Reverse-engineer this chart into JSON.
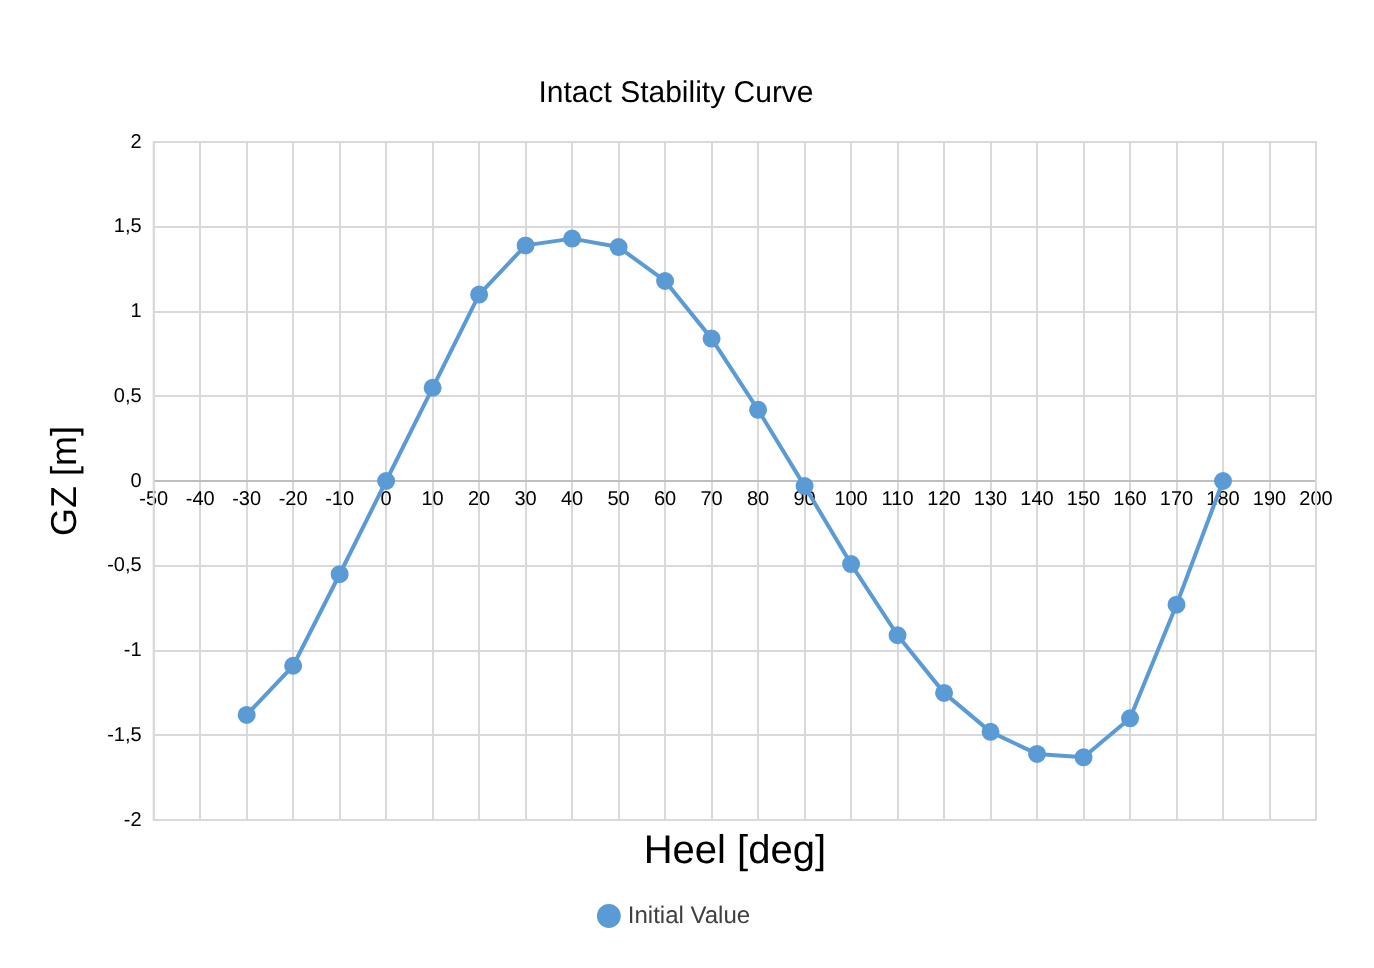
{
  "chart_data": {
    "type": "line",
    "title": "Intact Stability Curve",
    "xlabel": "Heel [deg]",
    "ylabel": "GZ [m]",
    "x": [
      -30,
      -20,
      -10,
      0,
      10,
      20,
      30,
      40,
      50,
      60,
      70,
      80,
      90,
      100,
      110,
      120,
      130,
      140,
      150,
      160,
      170,
      180
    ],
    "series": [
      {
        "name": "Initial Value",
        "color": "#5b9bd5",
        "values": [
          -1.38,
          -1.09,
          -0.55,
          0,
          0.55,
          1.1,
          1.39,
          1.43,
          1.38,
          1.18,
          0.84,
          0.42,
          -0.03,
          -0.49,
          -0.91,
          -1.25,
          -1.48,
          -1.61,
          -1.63,
          -1.4,
          -0.73,
          0
        ]
      }
    ],
    "xlim": [
      -50,
      200
    ],
    "xticks": [
      -50,
      -40,
      -30,
      -20,
      -10,
      0,
      10,
      20,
      30,
      40,
      50,
      60,
      70,
      80,
      90,
      100,
      110,
      120,
      130,
      140,
      150,
      160,
      170,
      180,
      190,
      200
    ],
    "ylim": [
      -2,
      2
    ],
    "yticks": [
      -2,
      {
        "value": -1.5,
        "label": "-1,5"
      },
      -1,
      {
        "value": -0.5,
        "label": "-0,5"
      },
      0,
      {
        "value": 0.5,
        "label": "0,5"
      },
      1,
      {
        "value": 1.5,
        "label": "1,5"
      },
      2
    ],
    "grid": true,
    "legend": "bottom",
    "marker": "circle",
    "line_style": "solid"
  }
}
